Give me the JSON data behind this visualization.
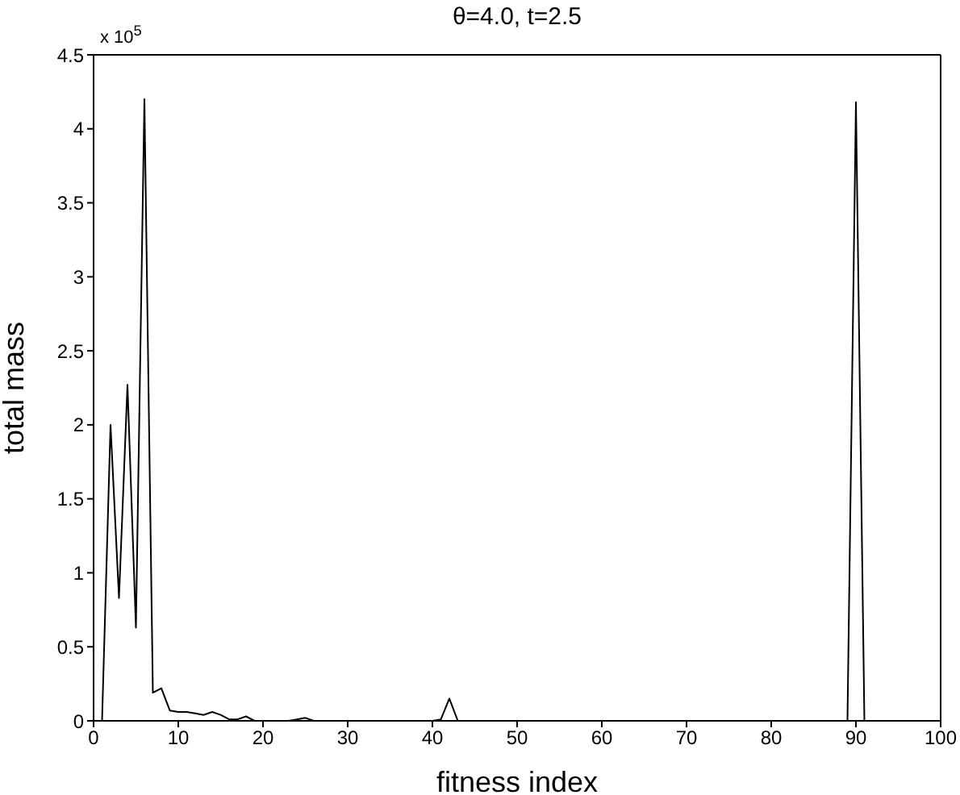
{
  "chart_data": {
    "type": "line",
    "title": "θ=4.0, t=2.5",
    "xlabel": "fitness index",
    "ylabel": "total mass",
    "annotations": [
      "x 10$^{5}$"
    ],
    "series": [
      {
        "color": "#000000",
        "x": [
          1,
          2,
          3,
          4,
          5,
          6,
          7,
          8,
          9,
          10,
          11,
          12,
          13,
          14,
          15,
          16,
          17,
          18,
          19,
          23,
          24,
          25,
          26,
          40,
          41,
          42,
          43,
          89,
          90,
          91,
          100
        ],
        "values": [
          0,
          2.0,
          0.83,
          2.27,
          0.63,
          4.2,
          0.19,
          0.22,
          0.07,
          0.06,
          0.06,
          0.05,
          0.04,
          0.06,
          0.04,
          0.01,
          0.01,
          0.03,
          0,
          0,
          0.01,
          0.02,
          0,
          0,
          0.01,
          0.15,
          0,
          0,
          4.18,
          0,
          0
        ]
      }
    ],
    "xlim": [
      0,
      100
    ],
    "xticks": [
      0,
      10,
      20,
      30,
      40,
      50,
      60,
      70,
      80,
      90,
      100
    ],
    "ylim": [
      0,
      4.5
    ],
    "yticks": [
      0,
      0.5,
      1,
      1.5,
      2,
      2.5,
      3,
      3.5,
      4,
      4.5
    ],
    "marker": "none",
    "line_style": "solid"
  }
}
